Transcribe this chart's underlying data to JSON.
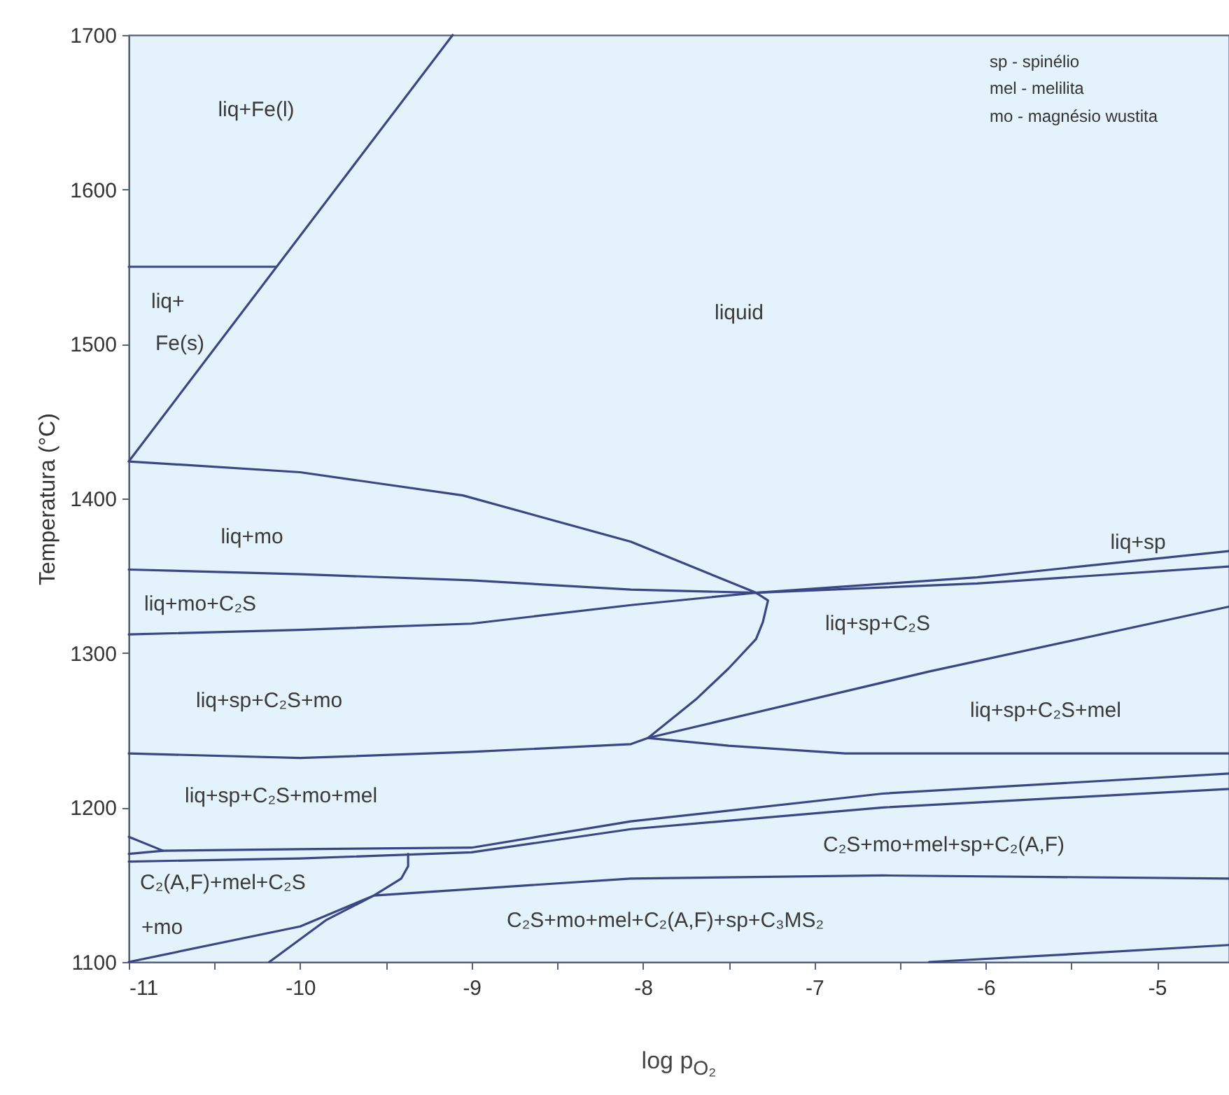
{
  "chart_data": {
    "type": "line",
    "xlabel": "log p$_{O₂}$",
    "ylabel": "Temperatura (°C)",
    "xlim": [
      -11,
      -4.58
    ],
    "ylim": [
      1100,
      1700
    ],
    "xticks": [
      -11,
      {
        "value": -10.5,
        "label": null
      },
      -10,
      {
        "value": -9.5,
        "label": null
      },
      -9,
      {
        "value": -8.5,
        "label": null
      },
      -8,
      {
        "value": -7.5,
        "label": null
      },
      -7,
      {
        "value": -6.5,
        "label": null
      },
      -6,
      {
        "value": -5.5,
        "label": null
      },
      -5
    ],
    "yticks": [
      1100,
      1200,
      1300,
      1400,
      1500,
      1600,
      1700
    ],
    "series": [
      {
        "color": "#3b4685",
        "x": [
          -11,
          -9.11
        ],
        "values": [
          1424,
          1700
        ]
      },
      {
        "color": "#3b4685",
        "x": [
          -11,
          -10.14
        ],
        "values": [
          1550,
          1550
        ]
      },
      {
        "color": "#3b4685",
        "x": [
          -11,
          -10,
          -9.05,
          -8.07,
          -7.34,
          -7.27,
          -7.3,
          -7.34,
          -7.5,
          -7.69,
          -7.97,
          -6.33,
          -4.58
        ],
        "values": [
          1424,
          1417,
          1402,
          1372,
          1339,
          1334,
          1320,
          1309,
          1290,
          1270,
          1245,
          1288,
          1330
        ]
      },
      {
        "color": "#3b4685",
        "x": [
          -11,
          -10,
          -9,
          -8.07,
          -7.34,
          -6.05,
          -4.58
        ],
        "values": [
          1354,
          1351,
          1347,
          1341,
          1339,
          1345,
          1356
        ]
      },
      {
        "color": "#3b4685",
        "x": [
          -11,
          -10,
          -9,
          -8.07,
          -7.34,
          -6.05,
          -4.58
        ],
        "values": [
          1312,
          1315,
          1319,
          1331,
          1339,
          1349,
          1366
        ]
      },
      {
        "color": "#3b4685",
        "x": [
          -11,
          -10,
          -9,
          -8.07,
          -7.97,
          -7.5,
          -6.82,
          -4.58
        ],
        "values": [
          1235,
          1232,
          1236,
          1241,
          1245,
          1240,
          1235,
          1235
        ]
      },
      {
        "color": "#3b4685",
        "x": [
          -11,
          -10.8,
          -10,
          -9,
          -8.07,
          -6.6,
          -4.58
        ],
        "values": [
          1170,
          1172,
          1173,
          1174,
          1191,
          1209,
          1222
        ]
      },
      {
        "color": "#3b4685",
        "x": [
          -11,
          -10,
          -9,
          -8.07,
          -6.6,
          -4.58
        ],
        "values": [
          1165,
          1167,
          1171,
          1186,
          1200,
          1212
        ]
      },
      {
        "color": "#3b4685",
        "x": [
          -11,
          -10.8
        ],
        "values": [
          1181,
          1172
        ]
      },
      {
        "color": "#3b4685",
        "x": [
          -11,
          -10,
          -9.57,
          -9.03,
          -8.07,
          -6.6,
          -4.58
        ],
        "values": [
          1100,
          1123,
          1143,
          1147,
          1154,
          1156,
          1154
        ]
      },
      {
        "color": "#3b4685",
        "x": [
          -10.18,
          -9.85,
          -9.57,
          -9.41,
          -9.37,
          -9.37
        ],
        "values": [
          1100,
          1127,
          1143,
          1154,
          1162,
          1170
        ]
      },
      {
        "color": "#3b4685",
        "x": [
          -6.33,
          -5.51,
          -4.58
        ],
        "values": [
          1100,
          1105,
          1111
        ]
      }
    ],
    "annotations": [
      "liq+Fe(l)",
      "liq+",
      "Fe(s)",
      "liquid",
      "liq+mo",
      "liq+mo+C₂S",
      "liq+sp+C₂S+mo",
      "liq+sp+C₂S+mo+mel",
      "C₂(A,F)+mel+C₂S",
      "+mo",
      "C₂S+mo+mel+C₂(A,F)+sp+C₃MS₂",
      "C₂S+mo+mel+sp+C₂(A,F)",
      "liq+sp+C₂S",
      "liq+sp+C₂S+mel",
      "liq+sp",
      "sp - spinélio",
      "mel - melilita",
      "mo - magnésio wustita"
    ]
  }
}
